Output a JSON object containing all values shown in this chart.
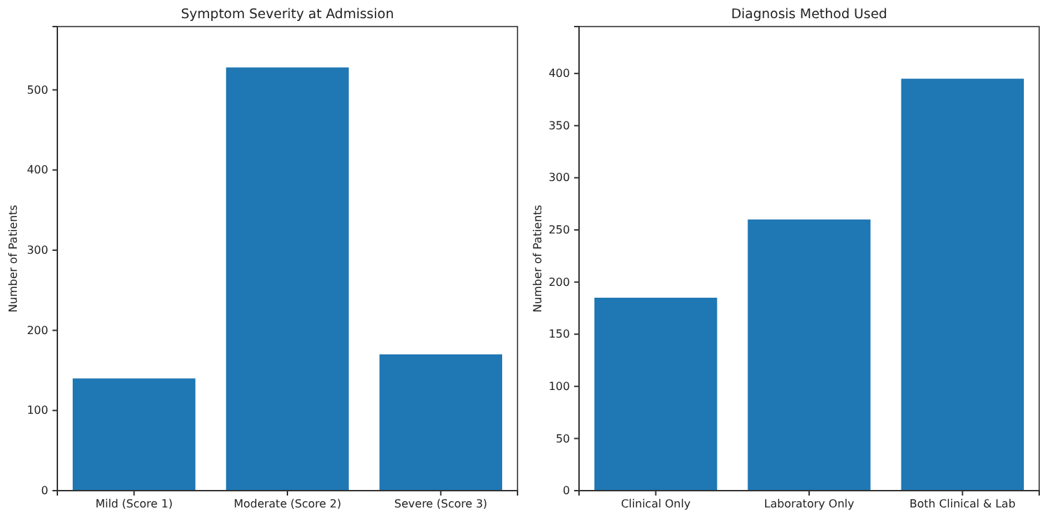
{
  "chart_data": [
    {
      "type": "bar",
      "title": "Symptom Severity at Admission",
      "ylabel": "Number of Patients",
      "categories": [
        "Mild (Score 1)",
        "Moderate (Score 2)",
        "Severe (Score 3)"
      ],
      "values": [
        140,
        528,
        170
      ],
      "color": "#1f77b4",
      "ylim": [
        0,
        579
      ],
      "yticks": [
        0,
        100,
        200,
        300,
        400,
        500
      ],
      "grid": false
    },
    {
      "type": "bar",
      "title": "Diagnosis Method Used",
      "ylabel": "Number of Patients",
      "categories": [
        "Clinical Only",
        "Laboratory Only",
        "Both Clinical & Lab"
      ],
      "values": [
        185,
        260,
        395
      ],
      "color": "#1f77b4",
      "ylim": [
        0,
        445
      ],
      "yticks": [
        0,
        50,
        100,
        150,
        200,
        250,
        300,
        350,
        400
      ],
      "grid": false
    }
  ]
}
